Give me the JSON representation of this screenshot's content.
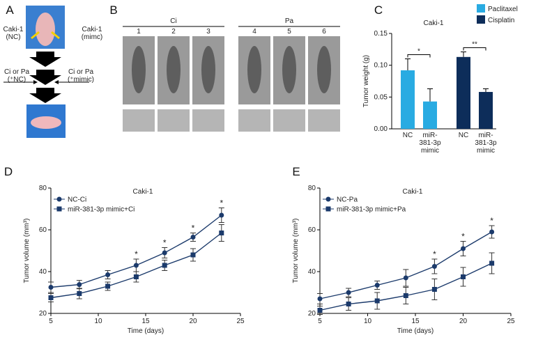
{
  "panel_labels": [
    "A",
    "B",
    "C",
    "D",
    "E"
  ],
  "panel_a": {
    "left_label": "Caki-1 (NC)",
    "right_label": "Caki-1 (mimc)",
    "left_treatment": "Ci or Pa (⁺NC)",
    "right_treatment": "Ci or Pa (⁺mimic)"
  },
  "panel_b": {
    "groups": [
      {
        "name": "Ci",
        "columns": [
          "1",
          "2",
          "3"
        ]
      },
      {
        "name": "Pa",
        "columns": [
          "4",
          "5",
          "6"
        ]
      }
    ]
  },
  "chart_data": [
    {
      "type": "bar",
      "title": "Caki-1",
      "y_label": "Tumor weight (g)",
      "categories": [
        "NC",
        "miR-381-3p mimic"
      ],
      "series": [
        {
          "name": "Paclitaxel",
          "color": "#29abe2",
          "values": [
            0.092,
            0.043
          ],
          "errors": [
            0.018,
            0.02
          ],
          "significance": "*"
        },
        {
          "name": "Cisplatin",
          "color": "#0d2d5a",
          "values": [
            0.113,
            0.058
          ],
          "errors": [
            0.008,
            0.005
          ],
          "significance": "**"
        }
      ],
      "ylim": [
        0,
        0.15
      ],
      "yticks": [
        {
          "value": 0,
          "label": "0.00"
        },
        {
          "value": 0.05,
          "label": "0.05"
        },
        {
          "value": 0.1,
          "label": "0.10"
        },
        {
          "value": 0.15,
          "label": "0.15"
        }
      ],
      "legend": "top-right"
    },
    {
      "type": "line",
      "title": "Caki-1",
      "x_label": "Time (days)",
      "y_label": "Tumor volume (mm³)",
      "x": [
        5,
        8,
        11,
        14,
        17,
        20,
        23
      ],
      "series": [
        {
          "name": "NC-Ci",
          "color": "#1b3a6b",
          "marker": "circle",
          "values": [
            32.5,
            33.8,
            38.5,
            43,
            49,
            56.5,
            67
          ],
          "errors": [
            2.5,
            2,
            2,
            3,
            2.5,
            2,
            3.5
          ]
        },
        {
          "name": "miR-381-3p mimic+Ci",
          "color": "#1b3a6b",
          "marker": "square",
          "values": [
            27.5,
            29.5,
            33,
            37.5,
            43,
            48,
            58.5
          ],
          "errors": [
            2,
            2.5,
            2,
            2.5,
            2.5,
            3,
            4
          ]
        }
      ],
      "annotations": [
        {
          "x": 14,
          "text": "*"
        },
        {
          "x": 17,
          "text": "*"
        },
        {
          "x": 20,
          "text": "*"
        },
        {
          "x": 23,
          "text": "*"
        }
      ],
      "xlim": [
        5,
        25
      ],
      "xticks": [
        5,
        10,
        15,
        20,
        25
      ],
      "ylim": [
        20,
        80
      ],
      "yticks": [
        20,
        40,
        60,
        80
      ],
      "legend": "top-left"
    },
    {
      "type": "line",
      "title": "Caki-1",
      "x_label": "Time (days)",
      "y_label": "Tumor volume (mm³)",
      "x": [
        5,
        8,
        11,
        14,
        17,
        20,
        23
      ],
      "series": [
        {
          "name": "NC-Pa",
          "color": "#1b3a6b",
          "marker": "circle",
          "values": [
            27,
            30,
            33.5,
            37,
            42.5,
            51,
            59
          ],
          "errors": [
            2.5,
            2,
            2,
            4,
            3.5,
            3.5,
            3
          ]
        },
        {
          "name": "miR-381-3p mimic+Pa",
          "color": "#1b3a6b",
          "marker": "square",
          "values": [
            21.5,
            24.5,
            26,
            28.5,
            31.5,
            37.5,
            44
          ],
          "errors": [
            2,
            3,
            4,
            4,
            5,
            4.5,
            5
          ]
        }
      ],
      "annotations": [
        {
          "x": 17,
          "text": "*"
        },
        {
          "x": 20,
          "text": "*"
        },
        {
          "x": 23,
          "text": "*"
        }
      ],
      "xlim": [
        5,
        25
      ],
      "xticks": [
        5,
        10,
        15,
        20,
        25
      ],
      "ylim": [
        20,
        80
      ],
      "yticks": [
        20,
        40,
        60,
        80
      ],
      "legend": "top-left"
    }
  ]
}
